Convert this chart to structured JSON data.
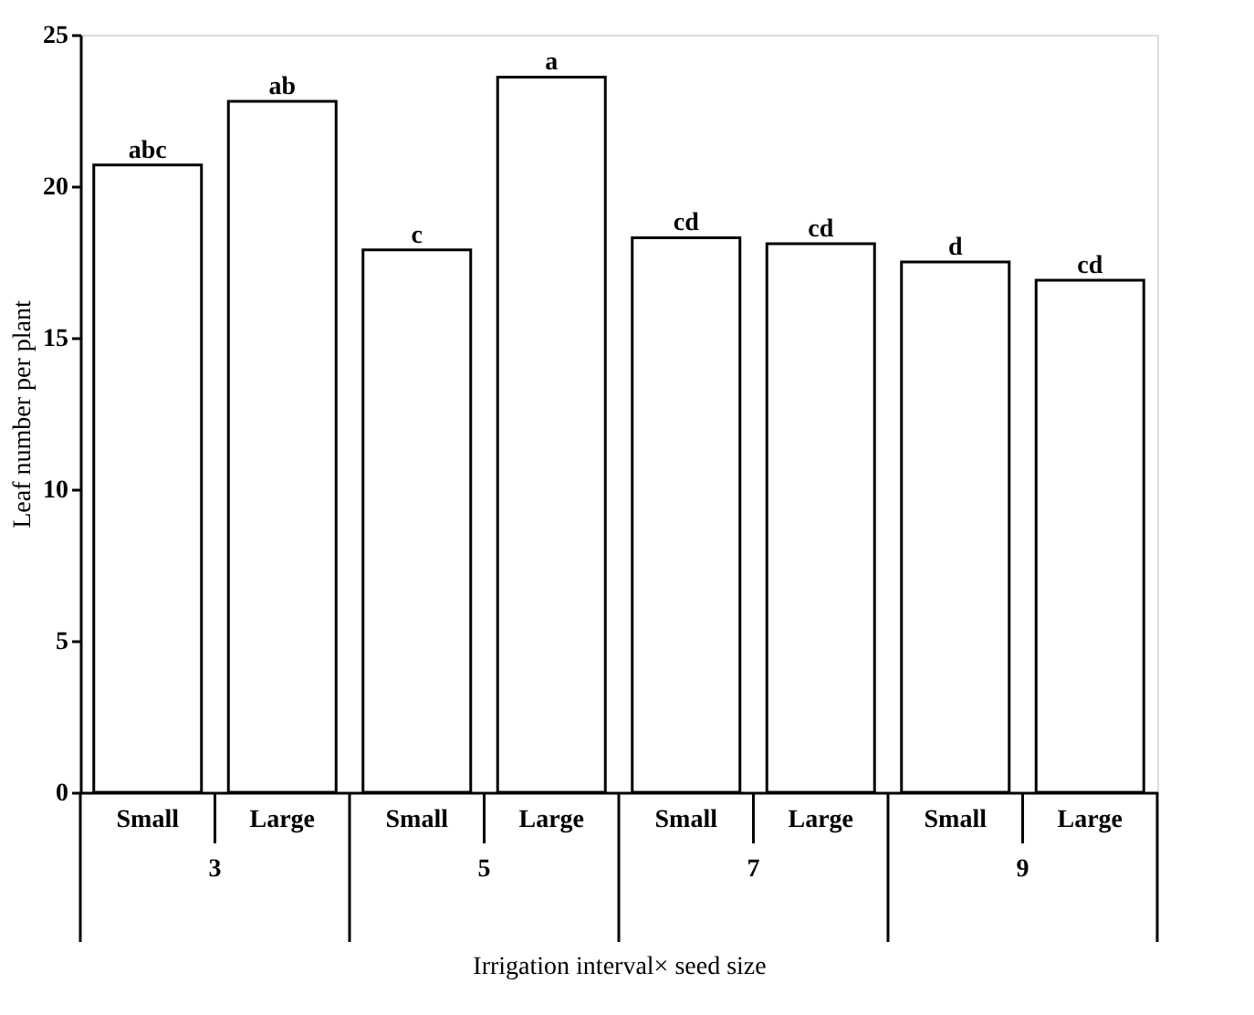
{
  "chart_data": {
    "type": "bar",
    "xlabel": "Irrigation interval× seed size",
    "ylabel": "Leaf number per plant",
    "categories": [
      "Small",
      "Large",
      "Small",
      "Large",
      "Small",
      "Large",
      "Small",
      "Large"
    ],
    "values": [
      20.7,
      22.8,
      17.9,
      23.6,
      18.3,
      18.1,
      17.5,
      16.9
    ],
    "value_labels": [
      "abc",
      "ab",
      "c",
      "a",
      "cd",
      "cd",
      "d",
      "cd"
    ],
    "color": "#ffffff",
    "ylim": [
      0,
      25
    ],
    "yticks": [
      0,
      5,
      10,
      15,
      20,
      25
    ],
    "grid": false,
    "annotations": [
      "3",
      "5",
      "7",
      "9"
    ]
  }
}
